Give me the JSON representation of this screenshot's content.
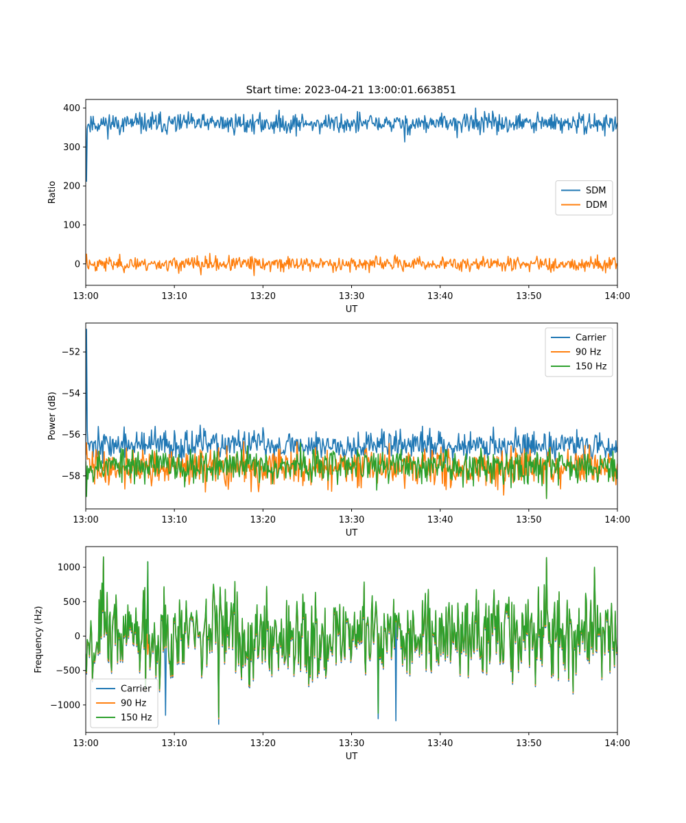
{
  "figure": {
    "title": "Start time: 2023-04-21 13:00:01.663851"
  },
  "colors": {
    "c0": "#1f77b4",
    "c1": "#ff7f0e",
    "c2": "#2ca02c"
  },
  "chart_data": [
    {
      "type": "line",
      "title": "Start time: 2023-04-21 13:00:01.663851",
      "xlabel": "UT",
      "ylabel": "Ratio",
      "xlim": [
        "13:00",
        "14:00"
      ],
      "ylim": [
        -55,
        422
      ],
      "x_ticks": [
        "13:00",
        "13:10",
        "13:20",
        "13:30",
        "13:40",
        "13:50",
        "14:00"
      ],
      "y_ticks": [
        0,
        100,
        200,
        300,
        400
      ],
      "legend_position": "center-right",
      "grid": false,
      "series": [
        {
          "name": "SDM",
          "color": "#1f77b4",
          "base": 360,
          "spread": 13,
          "seed": 11,
          "points": [
            [
              "13:00",
              355
            ],
            [
              "13:00",
              212
            ],
            [
              "13:01",
              360
            ],
            [
              "13:12",
              360
            ],
            [
              "13:44",
              400
            ],
            [
              "13:36",
              313
            ],
            [
              "14:00",
              362
            ]
          ]
        },
        {
          "name": "DDM",
          "color": "#ff7f0e",
          "base": 0,
          "spread": 9,
          "seed": 23,
          "points": [
            [
              "13:00",
              0
            ],
            [
              "13:05",
              25
            ],
            [
              "13:14",
              27
            ],
            [
              "13:19",
              -30
            ],
            [
              "13:13",
              -28
            ],
            [
              "14:00",
              -5
            ]
          ]
        }
      ]
    },
    {
      "type": "line",
      "xlabel": "UT",
      "ylabel": "Power (dB)",
      "xlim": [
        "13:00",
        "14:00"
      ],
      "ylim": [
        -59.6,
        -50.6
      ],
      "x_ticks": [
        "13:00",
        "13:10",
        "13:20",
        "13:30",
        "13:40",
        "13:50",
        "14:00"
      ],
      "y_ticks": [
        -52,
        -54,
        -56,
        -58
      ],
      "legend_position": "upper-right",
      "grid": false,
      "series": [
        {
          "name": "Carrier",
          "color": "#1f77b4",
          "base": -56.5,
          "spread": 0.35,
          "seed": 37,
          "points": [
            [
              "13:00",
              -56.6
            ],
            [
              "13:00",
              -50.9
            ],
            [
              "13:00",
              -55.8
            ],
            [
              "13:38",
              -55.6
            ],
            [
              "13:53",
              -57.3
            ],
            [
              "14:00",
              -56.6
            ]
          ]
        },
        {
          "name": "90 Hz",
          "color": "#ff7f0e",
          "base": -57.6,
          "spread": 0.45,
          "seed": 41,
          "points": [
            [
              "13:00",
              -57.0
            ],
            [
              "13:12",
              -56.4
            ],
            [
              "13:52",
              -59.1
            ],
            [
              "14:00",
              -57.4
            ]
          ]
        },
        {
          "name": "150 Hz",
          "color": "#2ca02c",
          "base": -57.5,
          "spread": 0.4,
          "seed": 53,
          "points": [
            [
              "13:00",
              -57.3
            ],
            [
              "13:44",
              -59.0
            ],
            [
              "13:52",
              -59.1
            ],
            [
              "14:00",
              -57.7
            ]
          ]
        }
      ]
    },
    {
      "type": "line",
      "xlabel": "UT",
      "ylabel": "Frequency (Hz)",
      "xlim": [
        "13:00",
        "14:00"
      ],
      "ylim": [
        -1400,
        1300
      ],
      "x_ticks": [
        "13:00",
        "13:10",
        "13:20",
        "13:30",
        "13:40",
        "13:50",
        "14:00"
      ],
      "y_ticks": [
        1000,
        500,
        0,
        -500,
        -1000
      ],
      "legend_position": "lower-left",
      "grid": false,
      "series": [
        {
          "name": "Carrier",
          "color": "#1f77b4",
          "base": 0,
          "spread": 320,
          "seed": 67,
          "points": [
            [
              "13:02",
              1150
            ],
            [
              "13:07",
              1080
            ],
            [
              "13:09",
              -1150
            ],
            [
              "13:15",
              -1280
            ],
            [
              "13:33",
              -1200
            ],
            [
              "13:35",
              -1230
            ],
            [
              "13:52",
              1140
            ]
          ]
        },
        {
          "name": "90 Hz",
          "color": "#ff7f0e",
          "base": 0,
          "spread": 320,
          "seed": 67,
          "points": [
            [
              "13:02",
              1150
            ],
            [
              "13:15",
              -1200
            ],
            [
              "13:52",
              1140
            ]
          ]
        },
        {
          "name": "150 Hz",
          "color": "#2ca02c",
          "base": 0,
          "spread": 320,
          "seed": 67,
          "points": [
            [
              "13:02",
              1150
            ],
            [
              "13:07",
              1080
            ],
            [
              "13:15",
              -1180
            ],
            [
              "13:33",
              -1120
            ],
            [
              "13:52",
              1140
            ]
          ]
        }
      ]
    }
  ]
}
